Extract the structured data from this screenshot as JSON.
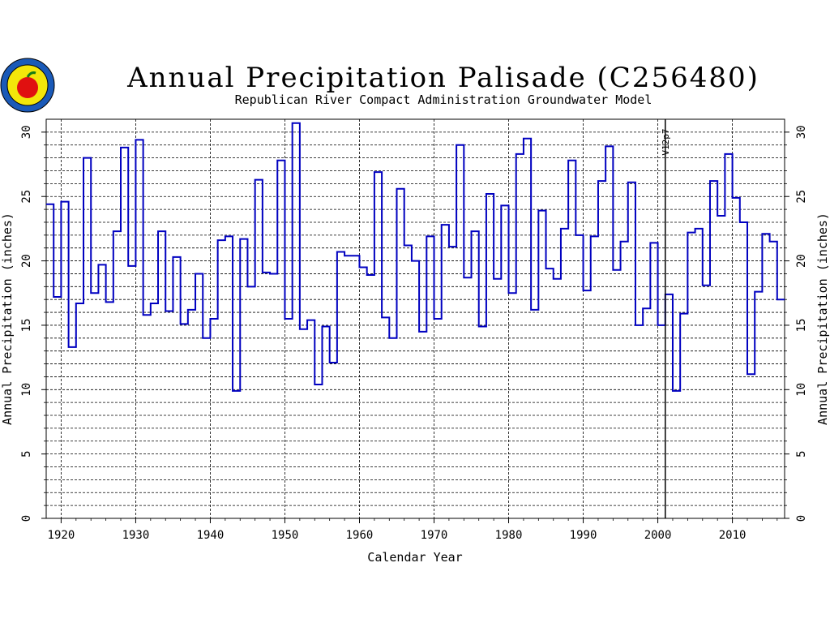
{
  "chart_data": {
    "type": "line",
    "step": true,
    "title": "Annual Precipitation Palisade (C256480)",
    "subtitle": "Republican River Compact Administration Groundwater Model",
    "xlabel": "Calendar Year",
    "ylabel": "Annual Precipitation (inches)",
    "xlim": [
      1918,
      2017
    ],
    "ylim": [
      0,
      31
    ],
    "xticks": [
      1920,
      1930,
      1940,
      1950,
      1960,
      1970,
      1980,
      1990,
      2000,
      2010
    ],
    "yticks": [
      0,
      5,
      10,
      15,
      20,
      25,
      30
    ],
    "grid": true,
    "line_color": "#0000c0",
    "annotation": {
      "label": "V12p7",
      "x": 2001
    },
    "series": [
      {
        "x": [
          1918,
          1919,
          1920,
          1921,
          1922,
          1923,
          1924,
          1925,
          1926,
          1927,
          1928,
          1929,
          1930,
          1931,
          1932,
          1933,
          1934,
          1935,
          1936,
          1937,
          1938,
          1939,
          1940,
          1941,
          1942,
          1943,
          1944,
          1945,
          1946,
          1947,
          1948,
          1949,
          1950,
          1951,
          1952,
          1953,
          1954,
          1955,
          1956,
          1957,
          1958,
          1959,
          1960,
          1961,
          1962,
          1963,
          1964,
          1965,
          1966,
          1967,
          1968,
          1969,
          1970,
          1971,
          1972,
          1973,
          1974,
          1975,
          1976,
          1977,
          1978,
          1979,
          1980,
          1981,
          1982,
          1983,
          1984,
          1985,
          1986,
          1987,
          1988,
          1989,
          1990,
          1991,
          1992,
          1993,
          1994,
          1995,
          1996,
          1997,
          1998,
          1999,
          2000,
          2001,
          2002,
          2003,
          2004,
          2005,
          2006,
          2007,
          2008,
          2009,
          2010,
          2011,
          2012,
          2013,
          2014,
          2015,
          2016
        ],
        "values": [
          24.4,
          17.2,
          24.6,
          13.3,
          16.7,
          28.0,
          17.5,
          19.7,
          16.8,
          22.3,
          28.8,
          19.6,
          29.4,
          15.8,
          16.7,
          22.3,
          16.1,
          20.3,
          15.1,
          16.2,
          19.0,
          14.0,
          15.5,
          21.6,
          21.9,
          9.9,
          21.7,
          18.0,
          26.3,
          19.1,
          19.0,
          27.8,
          15.5,
          30.7,
          14.7,
          15.4,
          10.4,
          14.9,
          12.1,
          20.7,
          20.4,
          20.4,
          19.5,
          18.9,
          26.9,
          15.6,
          14.0,
          25.6,
          21.2,
          20.0,
          14.5,
          21.9,
          15.5,
          22.8,
          21.1,
          29.0,
          18.7,
          22.3,
          14.9,
          25.2,
          18.6,
          24.3,
          17.5,
          28.3,
          29.5,
          16.2,
          23.9,
          19.4,
          18.6,
          22.5,
          27.8,
          22.0,
          17.7,
          21.9,
          26.2,
          28.9,
          19.3,
          21.5,
          26.1,
          15.0,
          16.3,
          21.4,
          15.0,
          17.4,
          9.9,
          15.9,
          22.2,
          22.5,
          18.1,
          26.2,
          23.5,
          28.3,
          24.9,
          23.0,
          11.2,
          17.6,
          22.1,
          21.5,
          17.0
        ]
      }
    ]
  }
}
